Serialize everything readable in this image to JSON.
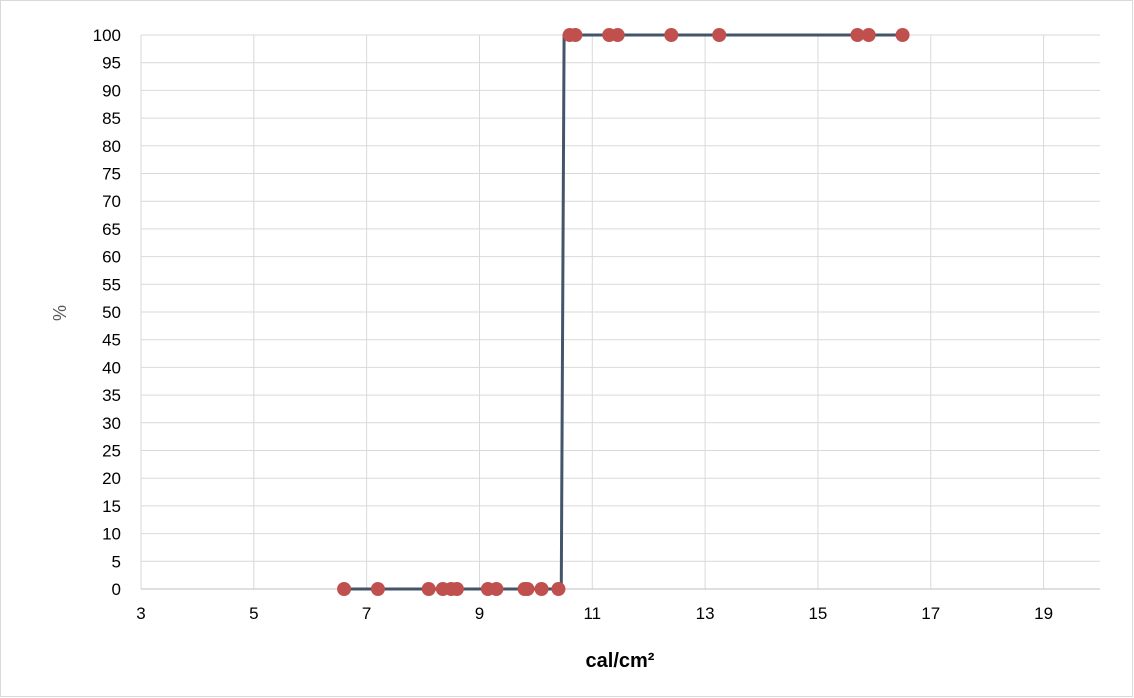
{
  "chart_data": {
    "type": "scatter",
    "title": "",
    "xlabel": "cal/cm²",
    "ylabel": "%",
    "xlim": [
      3,
      20
    ],
    "ylim": [
      0,
      100
    ],
    "x_ticks": [
      3,
      5,
      7,
      9,
      11,
      13,
      15,
      17,
      19
    ],
    "y_ticks": [
      0,
      5,
      10,
      15,
      20,
      25,
      30,
      35,
      40,
      45,
      50,
      55,
      60,
      65,
      70,
      75,
      80,
      85,
      90,
      95,
      100
    ],
    "grid": true,
    "legend": "none",
    "series": [
      {
        "type": "scatter",
        "color": "#c0504d",
        "x": [
          6.6,
          7.2,
          8.1,
          8.35,
          8.5,
          8.6,
          9.15,
          9.3,
          9.8,
          9.85,
          10.1,
          10.4,
          10.6,
          10.7,
          11.3,
          11.45,
          12.4,
          13.25,
          15.7,
          15.9,
          16.5
        ],
        "y": [
          0,
          0,
          0,
          0,
          0,
          0,
          0,
          0,
          0,
          0,
          0,
          0,
          100,
          100,
          100,
          100,
          100,
          100,
          100,
          100,
          100
        ]
      },
      {
        "type": "line",
        "color": "#44546a",
        "x": [
          6.6,
          10.45,
          10.5,
          16.5
        ],
        "y": [
          0,
          0,
          100,
          100
        ]
      }
    ]
  }
}
